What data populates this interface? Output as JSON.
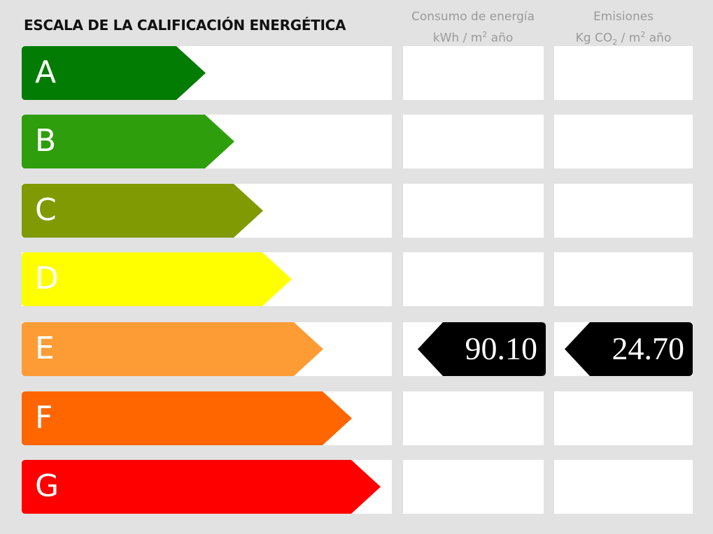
{
  "title": "ESCALA DE LA CALIFICACIÓN ENERGÉTICA",
  "columns": {
    "energy": {
      "line1": "Consumo de energía",
      "line2_prefix": "kWh / m",
      "line2_sup": "2",
      "line2_suffix": " año"
    },
    "emissions": {
      "line1": "Emisiones",
      "line2_prefix": "Kg CO",
      "line2_sub": "2",
      "line2_mid": " / m",
      "line2_sup": "2",
      "line2_suffix": " año"
    }
  },
  "ratings": [
    {
      "letter": "A",
      "color": "#037c03"
    },
    {
      "letter": "B",
      "color": "#2f9e0c"
    },
    {
      "letter": "C",
      "color": "#7f9a03"
    },
    {
      "letter": "D",
      "color": "#ffff00"
    },
    {
      "letter": "E",
      "color": "#fd9c35"
    },
    {
      "letter": "F",
      "color": "#ff6600"
    },
    {
      "letter": "G",
      "color": "#ff0000"
    }
  ],
  "current": {
    "rating": "E",
    "energy_value": "90.10",
    "emissions_value": "24.70",
    "marker_color": "#000000"
  }
}
